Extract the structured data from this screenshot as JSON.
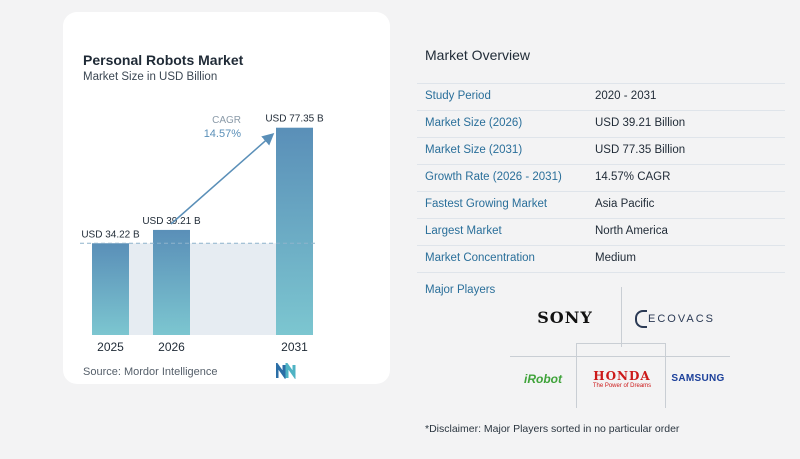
{
  "chart": {
    "title": "Personal Robots Market",
    "subtitle": "Market Size in USD Billion",
    "cagr_label": "CAGR",
    "cagr_value": "14.57%",
    "source": "Source:  Mordor Intelligence"
  },
  "chart_data": {
    "type": "bar",
    "title": "Personal Robots Market",
    "subtitle": "Market Size in USD Billion",
    "categories": [
      "2025",
      "2026",
      "2031"
    ],
    "values": [
      34.22,
      39.21,
      77.35
    ],
    "data_labels": [
      "USD 34.22 B",
      "USD 39.21 B",
      "USD 77.35 B"
    ],
    "annotation": "CAGR 14.57%",
    "ylim": [
      0,
      80
    ],
    "grid": false,
    "colors": {
      "bar_top": "#5a8fb8",
      "bar_bottom": "#7cc6d0",
      "band": "#e6ecf2",
      "arrow": "#5a8fb8"
    }
  },
  "overview": {
    "title": "Market Overview",
    "rows": [
      {
        "label": "Study Period",
        "value": "2020 - 2031"
      },
      {
        "label": "Market Size (2026)",
        "value": "USD 39.21 Billion"
      },
      {
        "label": "Market Size (2031)",
        "value": "USD 77.35 Billion"
      },
      {
        "label": "Growth Rate (2026 - 2031)",
        "value": "14.57% CAGR"
      },
      {
        "label": "Fastest Growing Market",
        "value": "Asia Pacific"
      },
      {
        "label": "Largest Market",
        "value": "North America"
      },
      {
        "label": "Market Concentration",
        "value": "Medium"
      }
    ],
    "players_label": "Major Players",
    "players": {
      "sony": "SONY",
      "ecovacs": "ECOVACS",
      "irobot": "iRobot",
      "honda": "HONDA",
      "honda_tagline": "The Power of Dreams",
      "samsung": "SAMSUNG"
    },
    "disclaimer": "*Disclaimer: Major Players sorted in no particular order"
  }
}
